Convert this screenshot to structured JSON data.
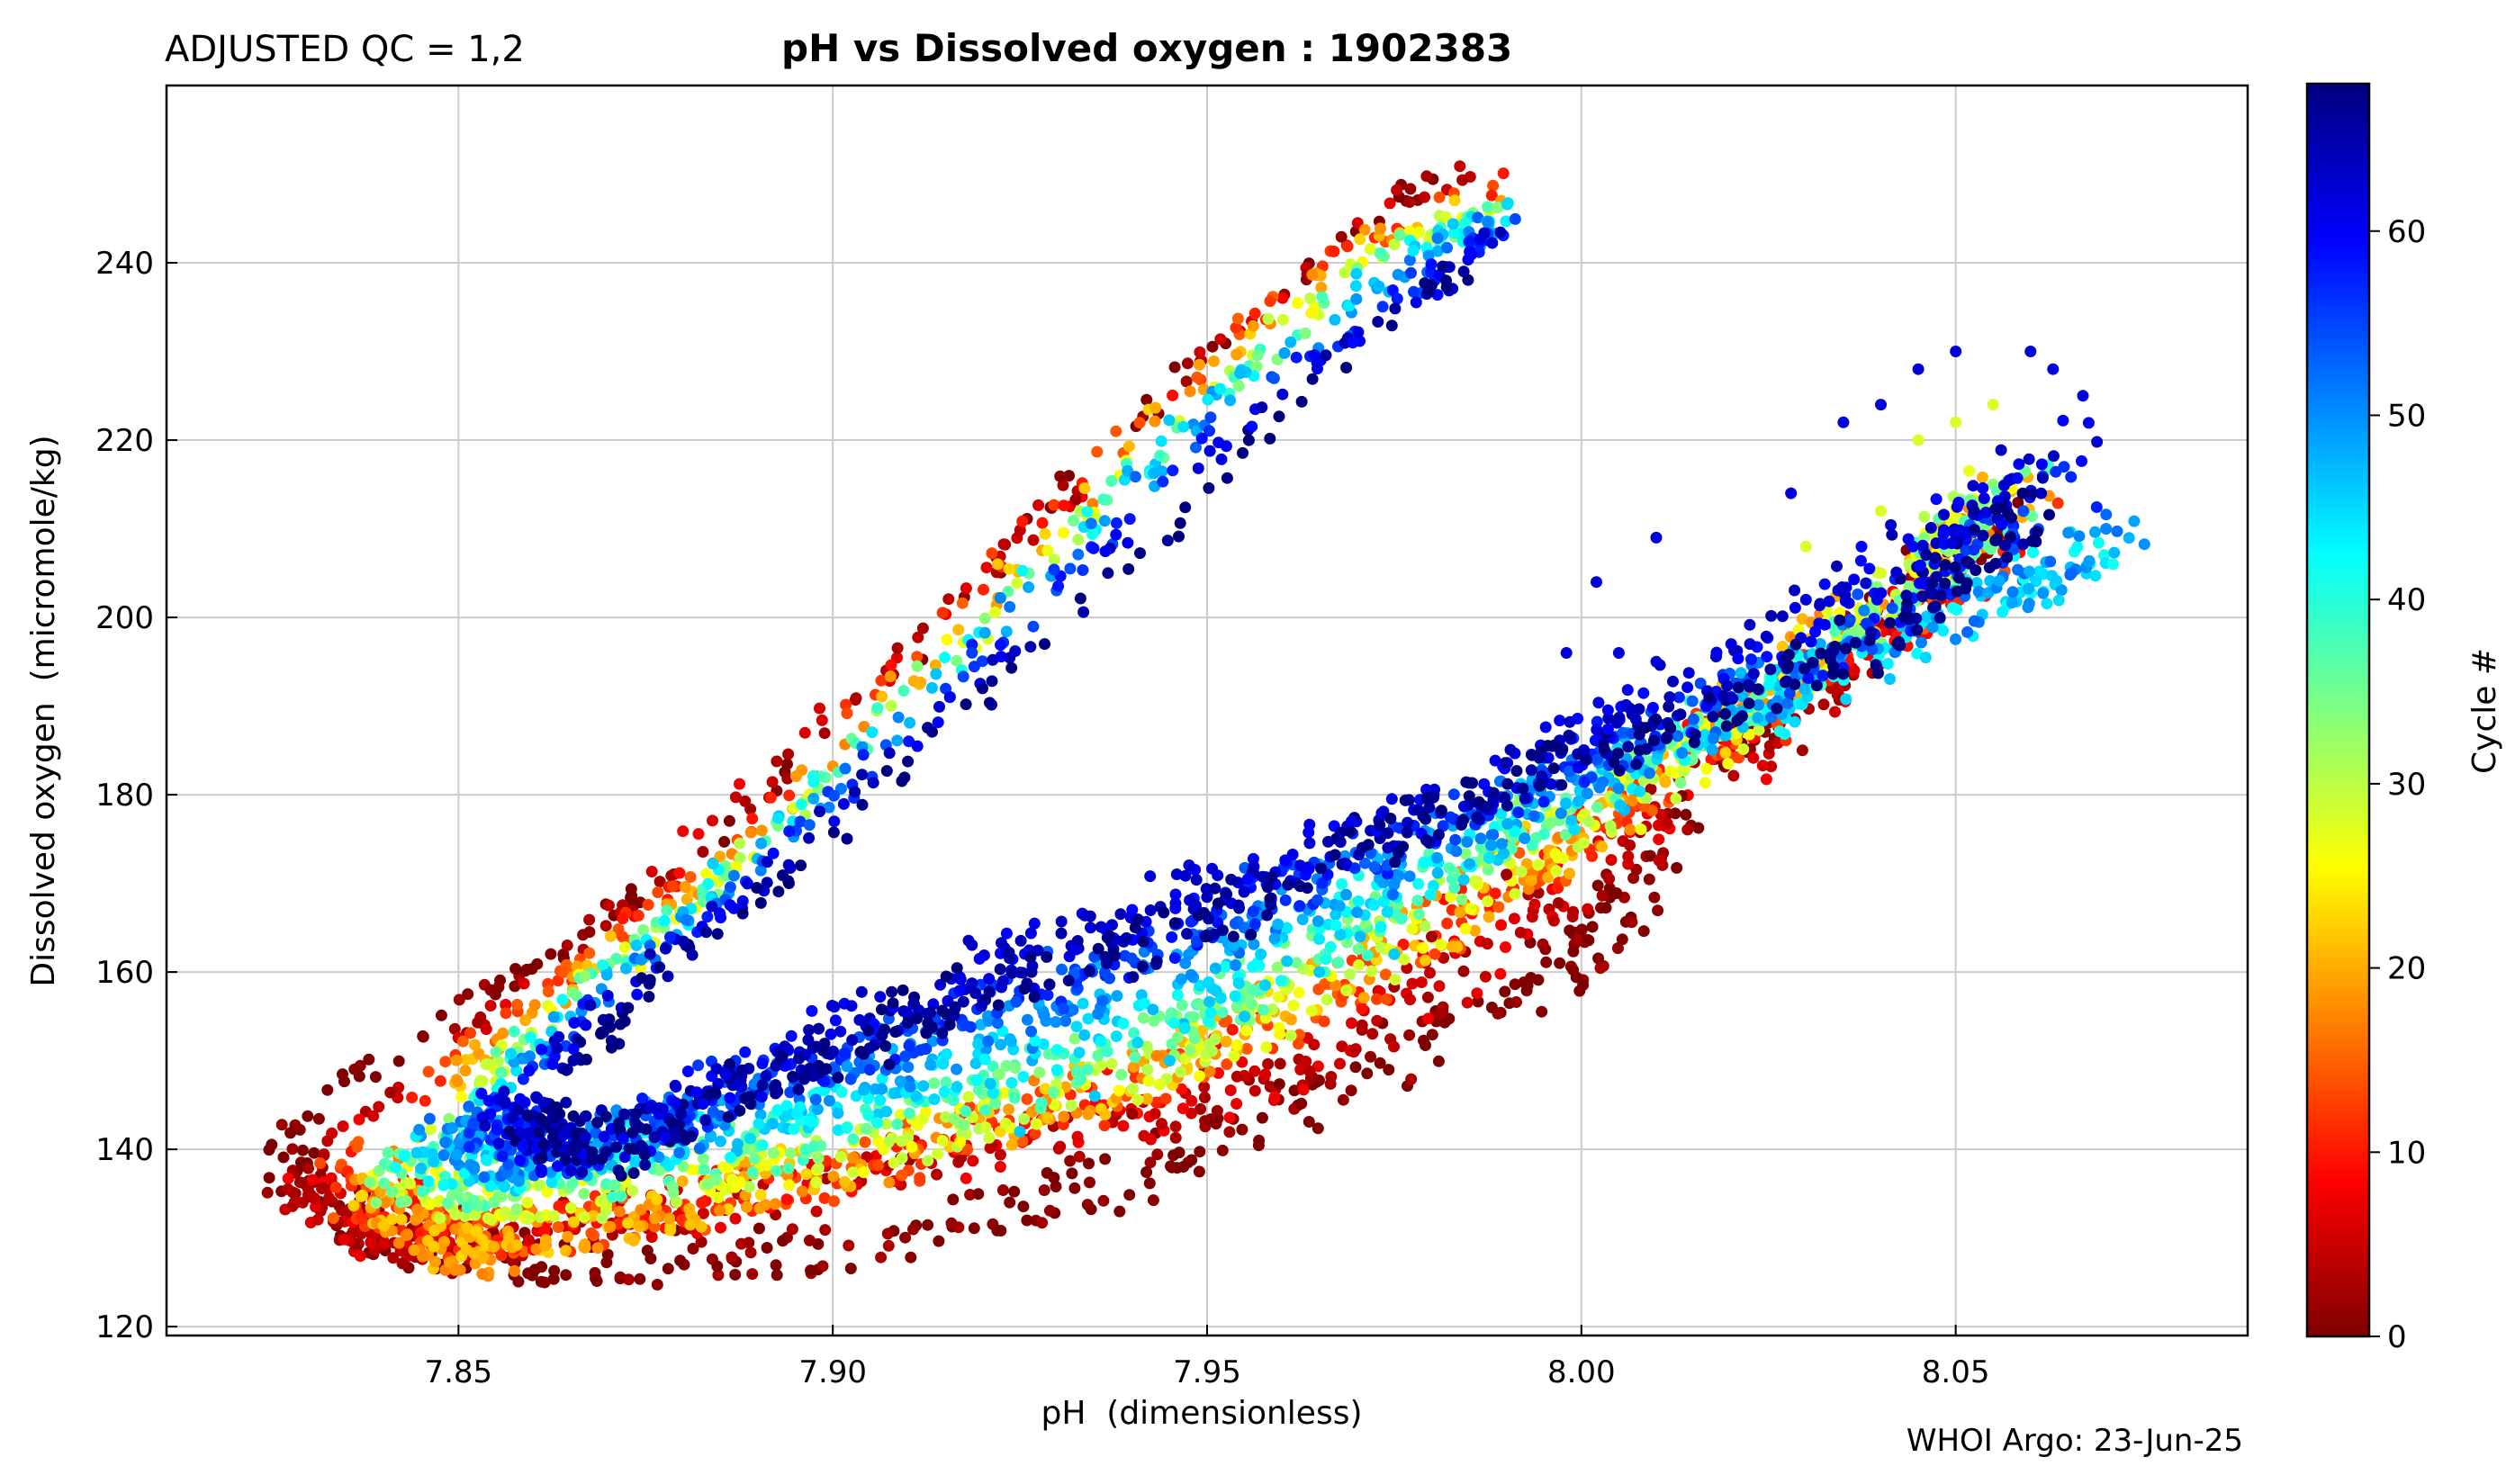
{
  "header": {
    "qc_label": "ADJUSTED QC = 1,2",
    "title": "pH vs Dissolved oxygen : 1902383"
  },
  "footer": {
    "credit": "WHOI Argo: 23-Jun-25"
  },
  "chart_data": {
    "type": "scatter",
    "title": "pH vs Dissolved oxygen : 1902383",
    "xlabel": "pH  (dimensionless)",
    "ylabel": "Dissolved oxygen  (micromole/kg)",
    "xlim": [
      7.811,
      8.089
    ],
    "ylim": [
      119,
      260
    ],
    "x_ticks": [
      "7.85",
      "7.90",
      "7.95",
      "8.00",
      "8.05"
    ],
    "x_tick_values": [
      7.85,
      7.9,
      7.95,
      8.0,
      8.05
    ],
    "y_ticks": [
      "120",
      "140",
      "160",
      "180",
      "200",
      "220",
      "240"
    ],
    "y_tick_values": [
      120,
      140,
      160,
      180,
      200,
      220,
      240
    ],
    "grid": true,
    "colormap": "jet (reversed at low end: 0 = dark red, max = dark blue)",
    "colorbar": {
      "label": "Cycle #",
      "range": [
        0,
        68
      ],
      "ticks": [
        "0",
        "10",
        "20",
        "30",
        "40",
        "50",
        "60"
      ],
      "tick_values": [
        0,
        10,
        20,
        30,
        40,
        50,
        60
      ],
      "colors": [
        "#7f0000",
        "#ff0000",
        "#ff8000",
        "#ffff00",
        "#80ff80",
        "#00ffff",
        "#0080ff",
        "#0000ff",
        "#00007f"
      ]
    },
    "series_profiles": [
      {
        "cycle": 0,
        "path": [
          [
            7.826,
            138
          ],
          [
            7.84,
            131
          ],
          [
            7.86,
            127
          ],
          [
            7.9,
            129
          ],
          [
            7.94,
            137
          ],
          [
            7.97,
            148
          ],
          [
            8.0,
            162
          ],
          [
            8.02,
            185
          ],
          [
            8.04,
            200
          ],
          [
            8.055,
            212
          ]
        ],
        "upper": [
          [
            7.826,
            140
          ],
          [
            7.835,
            148
          ],
          [
            7.85,
            156
          ],
          [
            7.86,
            160
          ],
          [
            7.875,
            170
          ],
          [
            7.9,
            186
          ],
          [
            7.93,
            214
          ],
          [
            7.96,
            238
          ],
          [
            7.985,
            252
          ]
        ]
      },
      {
        "cycle": 5,
        "path": [
          [
            7.828,
            136
          ],
          [
            7.84,
            130
          ],
          [
            7.86,
            131
          ],
          [
            7.9,
            136
          ],
          [
            7.94,
            143
          ],
          [
            7.97,
            152
          ],
          [
            8.0,
            170
          ],
          [
            8.03,
            190
          ],
          [
            8.05,
            205
          ]
        ],
        "upper": [
          [
            7.83,
            139
          ],
          [
            7.845,
            150
          ],
          [
            7.86,
            158
          ],
          [
            7.88,
            174
          ],
          [
            7.91,
            196
          ],
          [
            7.94,
            222
          ],
          [
            7.97,
            244
          ],
          [
            7.988,
            252
          ]
        ]
      },
      {
        "cycle": 12,
        "path": [
          [
            7.835,
            136
          ],
          [
            7.85,
            130
          ],
          [
            7.87,
            132
          ],
          [
            7.9,
            137
          ],
          [
            7.94,
            147
          ],
          [
            7.97,
            158
          ],
          [
            8.0,
            176
          ],
          [
            8.03,
            192
          ],
          [
            8.06,
            210
          ]
        ],
        "upper": [
          [
            7.837,
            139
          ],
          [
            7.85,
            151
          ],
          [
            7.865,
            160
          ],
          [
            7.885,
            174
          ],
          [
            7.91,
            195
          ],
          [
            7.94,
            222
          ],
          [
            7.965,
            240
          ],
          [
            7.99,
            250
          ]
        ]
      },
      {
        "cycle": 20,
        "path": [
          [
            7.838,
            135
          ],
          [
            7.85,
            128
          ],
          [
            7.87,
            131
          ],
          [
            7.9,
            138
          ],
          [
            7.94,
            148
          ],
          [
            7.97,
            160
          ],
          [
            8.0,
            176
          ],
          [
            8.03,
            196
          ],
          [
            8.06,
            215
          ]
        ],
        "upper": [
          [
            7.84,
            139
          ],
          [
            7.855,
            152
          ],
          [
            7.87,
            162
          ],
          [
            7.89,
            176
          ],
          [
            7.915,
            197
          ],
          [
            7.945,
            224
          ],
          [
            7.97,
            242
          ],
          [
            7.99,
            249
          ]
        ]
      },
      {
        "cycle": 28,
        "path": [
          [
            7.842,
            136
          ],
          [
            7.86,
            134
          ],
          [
            7.89,
            138
          ],
          [
            7.92,
            143
          ],
          [
            7.95,
            152
          ],
          [
            7.98,
            166
          ],
          [
            8.01,
            182
          ],
          [
            8.035,
            198
          ],
          [
            8.055,
            214
          ]
        ],
        "upper": [
          [
            7.845,
            140
          ],
          [
            7.858,
            153
          ],
          [
            7.875,
            163
          ],
          [
            7.893,
            177
          ],
          [
            7.92,
            199
          ],
          [
            7.948,
            224
          ],
          [
            7.972,
            241
          ],
          [
            7.99,
            248
          ]
        ]
      },
      {
        "cycle": 36,
        "path": [
          [
            7.84,
            137
          ],
          [
            7.86,
            136
          ],
          [
            7.89,
            140
          ],
          [
            7.92,
            146
          ],
          [
            7.95,
            155
          ],
          [
            7.98,
            170
          ],
          [
            8.01,
            184
          ],
          [
            8.04,
            200
          ],
          [
            8.06,
            216
          ]
        ],
        "upper": [
          [
            7.847,
            141
          ],
          [
            7.86,
            154
          ],
          [
            7.877,
            165
          ],
          [
            7.895,
            179
          ],
          [
            7.922,
            201
          ],
          [
            7.95,
            225
          ],
          [
            7.975,
            241
          ],
          [
            7.99,
            247
          ]
        ]
      },
      {
        "cycle": 44,
        "path": [
          [
            7.843,
            139
          ],
          [
            7.86,
            138
          ],
          [
            7.89,
            143
          ],
          [
            7.92,
            149
          ],
          [
            7.95,
            158
          ],
          [
            7.98,
            172
          ],
          [
            8.01,
            184
          ],
          [
            8.04,
            196
          ],
          [
            8.07,
            208
          ]
        ],
        "upper": [
          [
            7.85,
            142
          ],
          [
            7.862,
            154
          ],
          [
            7.879,
            166
          ],
          [
            7.897,
            180
          ],
          [
            7.924,
            202
          ],
          [
            7.952,
            226
          ],
          [
            7.977,
            241
          ],
          [
            7.99,
            246
          ]
        ]
      },
      {
        "cycle": 50,
        "path": [
          [
            7.848,
            141
          ],
          [
            7.86,
            139
          ],
          [
            7.89,
            145
          ],
          [
            7.92,
            152
          ],
          [
            7.95,
            162
          ],
          [
            7.98,
            174
          ],
          [
            8.01,
            186
          ],
          [
            8.04,
            198
          ],
          [
            8.075,
            210
          ]
        ],
        "upper": [
          [
            7.852,
            143
          ],
          [
            7.865,
            155
          ],
          [
            7.882,
            167
          ],
          [
            7.9,
            180
          ],
          [
            7.926,
            203
          ],
          [
            7.954,
            226
          ],
          [
            7.978,
            240
          ],
          [
            7.99,
            245
          ]
        ]
      },
      {
        "cycle": 56,
        "path": [
          [
            7.852,
            143
          ],
          [
            7.865,
            140
          ],
          [
            7.89,
            148
          ],
          [
            7.92,
            156
          ],
          [
            7.95,
            166
          ],
          [
            7.98,
            176
          ],
          [
            8.01,
            188
          ],
          [
            8.04,
            200
          ],
          [
            8.065,
            215
          ]
        ],
        "upper": [
          [
            7.855,
            145
          ],
          [
            7.868,
            156
          ],
          [
            7.885,
            168
          ],
          [
            7.903,
            181
          ],
          [
            7.93,
            204
          ],
          [
            7.957,
            226
          ],
          [
            7.98,
            239
          ],
          [
            7.99,
            244
          ]
        ]
      },
      {
        "cycle": 62,
        "path": [
          [
            7.856,
            145
          ],
          [
            7.865,
            140
          ],
          [
            7.89,
            150
          ],
          [
            7.92,
            160
          ],
          [
            7.95,
            169
          ],
          [
            7.98,
            178
          ],
          [
            8.01,
            190
          ],
          [
            8.04,
            205
          ],
          [
            8.065,
            220
          ]
        ],
        "upper": [
          [
            7.86,
            148
          ],
          [
            7.872,
            158
          ],
          [
            7.888,
            169
          ],
          [
            7.906,
            182
          ],
          [
            7.933,
            204
          ],
          [
            7.96,
            226
          ],
          [
            7.98,
            237
          ],
          [
            7.988,
            243
          ]
        ]
      },
      {
        "cycle": 68,
        "path": [
          [
            7.86,
            143
          ],
          [
            7.87,
            140
          ],
          [
            7.89,
            148
          ],
          [
            7.92,
            158
          ],
          [
            7.95,
            166
          ],
          [
            7.98,
            178
          ],
          [
            8.01,
            188
          ],
          [
            8.04,
            198
          ],
          [
            8.06,
            212
          ]
        ],
        "upper": [
          [
            7.865,
            148
          ],
          [
            7.875,
            158
          ],
          [
            7.89,
            168
          ],
          [
            7.91,
            184
          ],
          [
            7.94,
            206
          ],
          [
            7.965,
            228
          ],
          [
            7.985,
            240
          ]
        ]
      }
    ],
    "outliers": [
      {
        "cycle": 62,
        "points": [
          [
            7.998,
            196
          ],
          [
            8.005,
            196
          ],
          [
            8.01,
            195
          ],
          [
            8.02,
            197
          ],
          [
            8.03,
            202
          ],
          [
            8.028,
            214
          ],
          [
            8.035,
            222
          ],
          [
            8.04,
            224
          ],
          [
            8.045,
            228
          ],
          [
            8.05,
            230
          ],
          [
            8.06,
            230
          ],
          [
            8.063,
            228
          ],
          [
            8.067,
            225
          ],
          [
            8.002,
            204
          ],
          [
            8.01,
            209
          ]
        ]
      },
      {
        "cycle": 28,
        "points": [
          [
            8.03,
            208
          ],
          [
            8.04,
            212
          ],
          [
            8.045,
            220
          ],
          [
            8.05,
            222
          ],
          [
            8.055,
            224
          ],
          [
            8.04,
            205
          ]
        ]
      },
      {
        "cycle": 46,
        "points": [
          [
            7.925,
            142
          ],
          [
            7.935,
            146
          ],
          [
            7.945,
            150
          ],
          [
            7.955,
            155
          ],
          [
            7.965,
            160
          ],
          [
            7.975,
            162
          ]
        ]
      },
      {
        "cycle": 2,
        "points": [
          [
            7.99,
            171
          ],
          [
            7.98,
            164
          ],
          [
            7.94,
            144
          ]
        ]
      }
    ]
  }
}
